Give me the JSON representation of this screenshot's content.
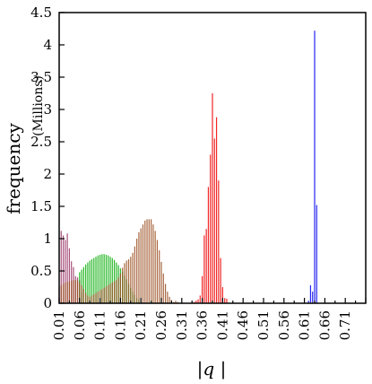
{
  "chart_data": {
    "type": "bar",
    "xlabel": "|q |",
    "ylabel": "frequency",
    "ylabel_unit": "(Millions)",
    "xlim": [
      0.01,
      0.76
    ],
    "ylim": [
      0,
      4.5
    ],
    "x_ticks": [
      "0.01",
      "0.06",
      "0.11",
      "0.16",
      "0.21",
      "0.26",
      "0.31",
      "0.36",
      "0.41",
      "0.46",
      "0.51",
      "0.56",
      "0.61",
      "0.66",
      "0.71"
    ],
    "y_ticks": [
      "0",
      "0.5",
      "1",
      "1.5",
      "2",
      "2.5",
      "3",
      "3.5",
      "4",
      "4.5"
    ],
    "bar_width": 0.0026,
    "grid": false,
    "legend": "none",
    "series": [
      {
        "color": "#993366",
        "x": [
          0.01,
          0.015,
          0.02,
          0.025,
          0.03,
          0.035,
          0.04,
          0.045,
          0.05,
          0.055,
          0.06,
          0.065
        ],
        "values": [
          0.25,
          1.12,
          1.05,
          0.98,
          1.08,
          0.85,
          0.65,
          0.56,
          0.42,
          0.4,
          0.36,
          0.16
        ]
      },
      {
        "color": "#00aa00",
        "x": [
          0.06,
          0.065,
          0.07,
          0.075,
          0.08,
          0.085,
          0.09,
          0.095,
          0.1,
          0.105,
          0.11,
          0.115,
          0.12,
          0.125,
          0.13,
          0.135,
          0.14,
          0.145,
          0.15,
          0.155,
          0.16,
          0.165,
          0.17,
          0.175,
          0.18,
          0.185,
          0.19,
          0.195,
          0.2,
          0.205
        ],
        "values": [
          0.48,
          0.52,
          0.56,
          0.6,
          0.63,
          0.66,
          0.68,
          0.7,
          0.72,
          0.74,
          0.75,
          0.76,
          0.76,
          0.75,
          0.74,
          0.72,
          0.7,
          0.67,
          0.63,
          0.59,
          0.54,
          0.49,
          0.43,
          0.37,
          0.3,
          0.24,
          0.18,
          0.13,
          0.08,
          0.05
        ]
      },
      {
        "color": "#994c1f",
        "x": [
          0.015,
          0.02,
          0.025,
          0.03,
          0.035,
          0.04,
          0.045,
          0.05,
          0.055,
          0.06,
          0.065,
          0.07,
          0.075,
          0.08,
          0.085,
          0.09,
          0.095,
          0.1,
          0.105,
          0.11,
          0.115,
          0.12,
          0.125,
          0.13,
          0.135,
          0.14,
          0.145,
          0.15,
          0.155,
          0.16,
          0.165,
          0.17,
          0.175,
          0.18,
          0.185,
          0.19,
          0.195,
          0.2,
          0.205,
          0.21,
          0.215,
          0.22,
          0.225,
          0.23,
          0.235,
          0.24,
          0.245,
          0.25,
          0.255,
          0.26,
          0.265,
          0.27,
          0.275,
          0.28,
          0.285,
          0.29,
          0.295,
          0.3
        ],
        "values": [
          0.28,
          0.3,
          0.32,
          0.33,
          0.34,
          0.35,
          0.36,
          0.36,
          0.35,
          0.32,
          0.28,
          0.22,
          0.16,
          0.12,
          0.1,
          0.12,
          0.14,
          0.16,
          0.18,
          0.2,
          0.22,
          0.24,
          0.26,
          0.28,
          0.3,
          0.32,
          0.34,
          0.36,
          0.4,
          0.46,
          0.55,
          0.62,
          0.66,
          0.68,
          0.72,
          0.78,
          0.88,
          1.0,
          1.1,
          1.16,
          1.22,
          1.28,
          1.3,
          1.3,
          1.3,
          1.22,
          1.12,
          0.98,
          0.82,
          0.64,
          0.46,
          0.3,
          0.18,
          0.1,
          0.05,
          0.02,
          0.04,
          0.02
        ]
      },
      {
        "color": "#ee0000",
        "x": [
          0.34,
          0.345,
          0.35,
          0.355,
          0.36,
          0.365,
          0.37,
          0.375,
          0.38,
          0.385,
          0.39,
          0.395,
          0.4,
          0.405,
          0.41,
          0.415,
          0.42
        ],
        "values": [
          0.02,
          0.04,
          0.06,
          0.12,
          0.42,
          1.05,
          1.15,
          1.8,
          2.3,
          3.25,
          2.55,
          2.88,
          1.9,
          0.7,
          0.25,
          0.08,
          0.07
        ]
      },
      {
        "color": "#0000ee",
        "x": [
          0.62,
          0.625,
          0.63,
          0.635,
          0.64
        ],
        "values": [
          0.04,
          0.28,
          0.18,
          4.22,
          1.52
        ]
      }
    ]
  }
}
